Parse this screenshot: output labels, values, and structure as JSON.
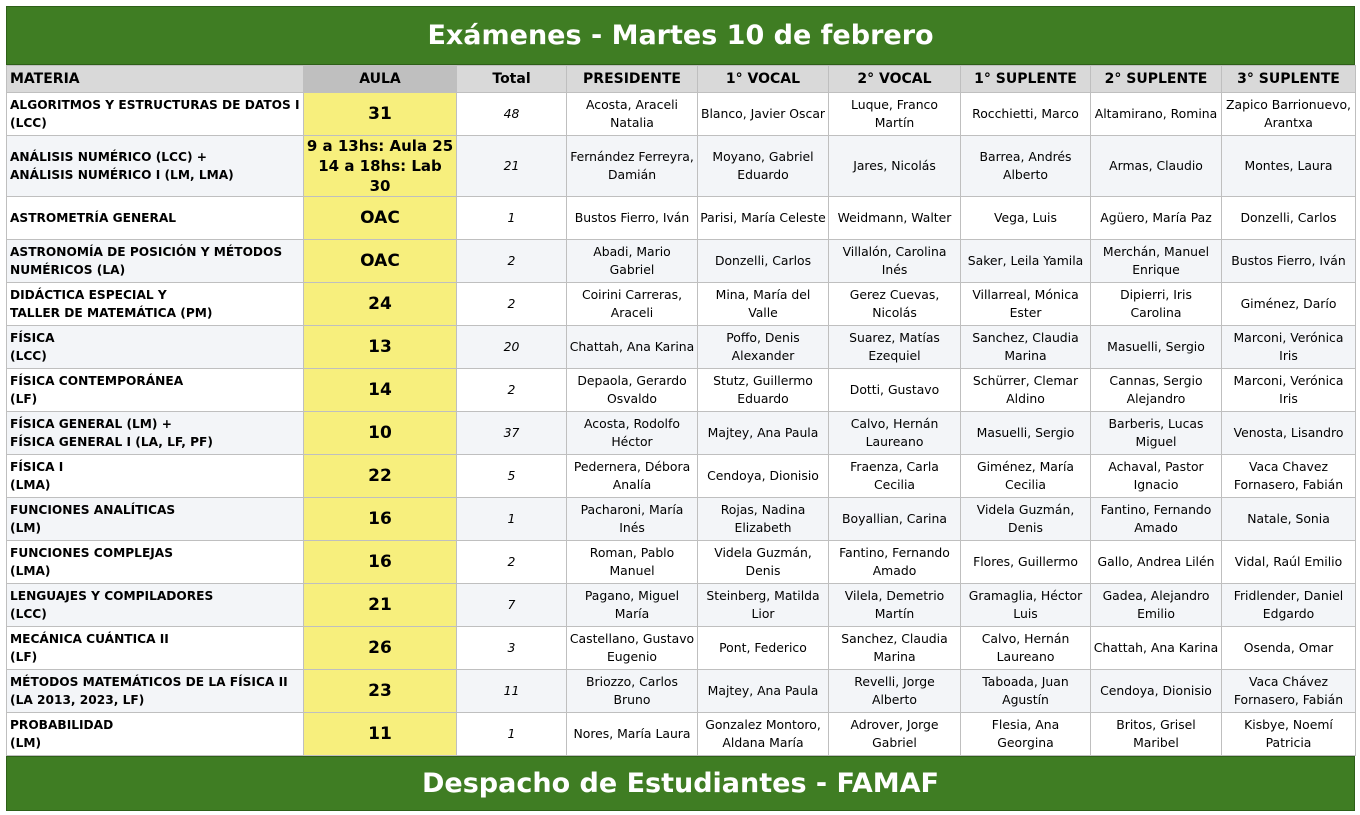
{
  "title": "Exámenes - Martes 10 de febrero",
  "footer": "Despacho de Estudiantes - FAMAF",
  "columns": [
    "MATERIA",
    "AULA",
    "Total",
    "PRESIDENTE",
    "1° VOCAL",
    "2° VOCAL",
    "1° SUPLENTE",
    "2° SUPLENTE",
    "3° SUPLENTE"
  ],
  "colors": {
    "banner": "#3f7d23",
    "aula_highlight": "#f7ef7d",
    "header_bg": "#d9d9d9"
  },
  "rows": [
    {
      "materia": [
        "ALGORITMOS Y ESTRUCTURAS DE DATOS I",
        "(LCC)"
      ],
      "aula": [
        "31"
      ],
      "total": "48",
      "presidente": "Acosta, Araceli Natalia",
      "vocal1": "Blanco, Javier Oscar",
      "vocal2": "Luque, Franco Martín",
      "suplente1": "Rocchietti, Marco",
      "suplente2": "Altamirano, Romina",
      "suplente3": "Zapico Barrionuevo, Arantxa"
    },
    {
      "materia": [
        "ANÁLISIS NUMÉRICO (LCC) +",
        "ANÁLISIS NUMÉRICO I (LM, LMA)"
      ],
      "aula": [
        "9 a 13hs: Aula 25",
        "14 a 18hs: Lab 30"
      ],
      "total": "21",
      "presidente": "Fernández Ferreyra, Damián",
      "vocal1": "Moyano, Gabriel Eduardo",
      "vocal2": "Jares, Nicolás",
      "suplente1": "Barrea, Andrés Alberto",
      "suplente2": "Armas, Claudio",
      "suplente3": "Montes, Laura"
    },
    {
      "materia": [
        "ASTROMETRÍA GENERAL"
      ],
      "aula": [
        "OAC"
      ],
      "total": "1",
      "presidente": "Bustos Fierro, Iván",
      "vocal1": "Parisi, María Celeste",
      "vocal2": "Weidmann, Walter",
      "suplente1": "Vega, Luis",
      "suplente2": "Agüero, María Paz",
      "suplente3": "Donzelli, Carlos"
    },
    {
      "materia": [
        "ASTRONOMÍA DE POSICIÓN Y MÉTODOS",
        "NUMÉRICOS (LA)"
      ],
      "aula": [
        "OAC"
      ],
      "total": "2",
      "presidente": "Abadi, Mario Gabriel",
      "vocal1": "Donzelli, Carlos",
      "vocal2": "Villalón, Carolina Inés",
      "suplente1": "Saker, Leila Yamila",
      "suplente2": "Merchán, Manuel Enrique",
      "suplente3": "Bustos Fierro, Iván"
    },
    {
      "materia": [
        "DIDÁCTICA ESPECIAL Y",
        "TALLER DE MATEMÁTICA (PM)"
      ],
      "aula": [
        "24"
      ],
      "total": "2",
      "presidente": "Coirini Carreras, Araceli",
      "vocal1": "Mina, María del Valle",
      "vocal2": "Gerez Cuevas, Nicolás",
      "suplente1": "Villarreal, Mónica Ester",
      "suplente2": "Dipierri, Iris Carolina",
      "suplente3": "Giménez, Darío"
    },
    {
      "materia": [
        "FÍSICA",
        "(LCC)"
      ],
      "aula": [
        "13"
      ],
      "total": "20",
      "presidente": "Chattah, Ana Karina",
      "vocal1": "Poffo, Denis Alexander",
      "vocal2": "Suarez, Matías Ezequiel",
      "suplente1": "Sanchez, Claudia Marina",
      "suplente2": "Masuelli, Sergio",
      "suplente3": "Marconi, Verónica Iris"
    },
    {
      "materia": [
        "FÍSICA CONTEMPORÁNEA",
        "(LF)"
      ],
      "aula": [
        "14"
      ],
      "total": "2",
      "presidente": "Depaola, Gerardo Osvaldo",
      "vocal1": "Stutz, Guillermo Eduardo",
      "vocal2": "Dotti, Gustavo",
      "suplente1": "Schürrer, Clemar Aldino",
      "suplente2": "Cannas, Sergio Alejandro",
      "suplente3": "Marconi, Verónica Iris"
    },
    {
      "materia": [
        "FÍSICA GENERAL (LM) +",
        "FÍSICA GENERAL I (LA, LF, PF)"
      ],
      "aula": [
        "10"
      ],
      "total": "37",
      "presidente": "Acosta, Rodolfo Héctor",
      "vocal1": "Majtey, Ana Paula",
      "vocal2": "Calvo, Hernán Laureano",
      "suplente1": "Masuelli, Sergio",
      "suplente2": "Barberis, Lucas Miguel",
      "suplente3": "Venosta, Lisandro"
    },
    {
      "materia": [
        "FÍSICA I",
        "(LMA)"
      ],
      "aula": [
        "22"
      ],
      "total": "5",
      "presidente": "Pedernera, Débora Analía",
      "vocal1": "Cendoya, Dionisio",
      "vocal2": "Fraenza, Carla Cecilia",
      "suplente1": "Giménez, María Cecilia",
      "suplente2": "Achaval, Pastor Ignacio",
      "suplente3": "Vaca Chavez Fornasero, Fabián"
    },
    {
      "materia": [
        "FUNCIONES ANALÍTICAS",
        "(LM)"
      ],
      "aula": [
        "16"
      ],
      "total": "1",
      "presidente": "Pacharoni, María Inés",
      "vocal1": "Rojas, Nadina Elizabeth",
      "vocal2": "Boyallian, Carina",
      "suplente1": "Videla Guzmán, Denis",
      "suplente2": "Fantino, Fernando Amado",
      "suplente3": "Natale, Sonia"
    },
    {
      "materia": [
        "FUNCIONES COMPLEJAS",
        "(LMA)"
      ],
      "aula": [
        "16"
      ],
      "total": "2",
      "presidente": "Roman, Pablo Manuel",
      "vocal1": "Videla Guzmán, Denis",
      "vocal2": "Fantino, Fernando Amado",
      "suplente1": "Flores, Guillermo",
      "suplente2": "Gallo, Andrea Lilén",
      "suplente3": "Vidal, Raúl Emilio"
    },
    {
      "materia": [
        "LENGUAJES Y COMPILADORES",
        "(LCC)"
      ],
      "aula": [
        "21"
      ],
      "total": "7",
      "presidente": "Pagano, Miguel María",
      "vocal1": "Steinberg, Matilda Lior",
      "vocal2": "Vilela, Demetrio Martín",
      "suplente1": "Gramaglia, Héctor Luis",
      "suplente2": "Gadea, Alejandro Emilio",
      "suplente3": "Fridlender, Daniel Edgardo"
    },
    {
      "materia": [
        "MECÁNICA CUÁNTICA II",
        "(LF)"
      ],
      "aula": [
        "26"
      ],
      "total": "3",
      "presidente": "Castellano, Gustavo Eugenio",
      "vocal1": "Pont, Federico",
      "vocal2": "Sanchez, Claudia Marina",
      "suplente1": "Calvo, Hernán Laureano",
      "suplente2": "Chattah, Ana Karina",
      "suplente3": "Osenda, Omar"
    },
    {
      "materia": [
        "MÉTODOS MATEMÁTICOS DE LA FÍSICA II",
        "(LA 2013, 2023, LF)"
      ],
      "aula": [
        "23"
      ],
      "total": "11",
      "presidente": "Briozzo, Carlos Bruno",
      "vocal1": "Majtey, Ana Paula",
      "vocal2": "Revelli, Jorge Alberto",
      "suplente1": "Taboada, Juan Agustín",
      "suplente2": "Cendoya, Dionisio",
      "suplente3": "Vaca Chávez Fornasero, Fabián"
    },
    {
      "materia": [
        "PROBABILIDAD",
        "(LM)"
      ],
      "aula": [
        "11"
      ],
      "total": "1",
      "presidente": "Nores, María Laura",
      "vocal1": "Gonzalez Montoro, Aldana María",
      "vocal2": "Adrover, Jorge Gabriel",
      "suplente1": "Flesia, Ana Georgina",
      "suplente2": "Britos, Grisel Maribel",
      "suplente3": "Kisbye, Noemí Patricia"
    }
  ]
}
